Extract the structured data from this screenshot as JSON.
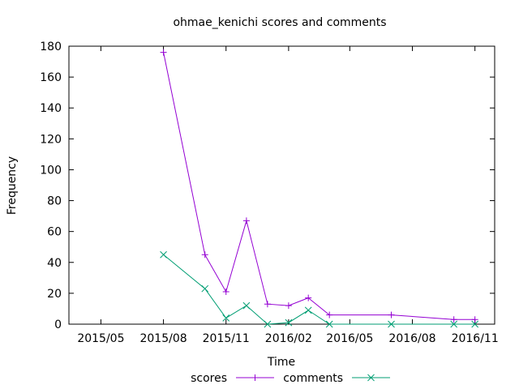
{
  "chart_data": {
    "type": "line",
    "title": "ohmae_kenichi scores and comments",
    "xlabel": "Time",
    "ylabel": "Frequency",
    "xlim": [
      "2015-03-15",
      "2016-11-30"
    ],
    "ylim": [
      0,
      180
    ],
    "yticks": [
      0,
      20,
      40,
      60,
      80,
      100,
      120,
      140,
      160,
      180
    ],
    "xticks": [
      {
        "date": "2015-05-01",
        "label": "2015/05"
      },
      {
        "date": "2015-08-01",
        "label": "2015/08"
      },
      {
        "date": "2015-11-01",
        "label": "2015/11"
      },
      {
        "date": "2016-02-01",
        "label": "2016/02"
      },
      {
        "date": "2016-05-01",
        "label": "2016/05"
      },
      {
        "date": "2016-08-01",
        "label": "2016/08"
      },
      {
        "date": "2016-11-01",
        "label": "2016/11"
      }
    ],
    "grid": false,
    "legend": "bottom-center",
    "series": [
      {
        "name": "scores",
        "color": "#9400d3",
        "marker": "plus",
        "points": [
          {
            "x": "2015-08-01",
            "y": 176
          },
          {
            "x": "2015-10-01",
            "y": 45
          },
          {
            "x": "2015-11-01",
            "y": 21
          },
          {
            "x": "2015-12-01",
            "y": 67
          },
          {
            "x": "2016-01-01",
            "y": 13
          },
          {
            "x": "2016-02-01",
            "y": 12
          },
          {
            "x": "2016-03-01",
            "y": 17
          },
          {
            "x": "2016-04-01",
            "y": 6
          },
          {
            "x": "2016-07-01",
            "y": 6
          },
          {
            "x": "2016-10-01",
            "y": 3
          },
          {
            "x": "2016-11-01",
            "y": 3
          }
        ]
      },
      {
        "name": "comments",
        "color": "#009e73",
        "marker": "cross",
        "points": [
          {
            "x": "2015-08-01",
            "y": 45
          },
          {
            "x": "2015-10-01",
            "y": 23
          },
          {
            "x": "2015-11-01",
            "y": 4
          },
          {
            "x": "2015-12-01",
            "y": 12
          },
          {
            "x": "2016-01-01",
            "y": 0
          },
          {
            "x": "2016-02-01",
            "y": 1
          },
          {
            "x": "2016-03-01",
            "y": 9
          },
          {
            "x": "2016-04-01",
            "y": 0
          },
          {
            "x": "2016-07-01",
            "y": 0
          },
          {
            "x": "2016-10-01",
            "y": 0
          },
          {
            "x": "2016-11-01",
            "y": 0
          }
        ]
      }
    ]
  }
}
